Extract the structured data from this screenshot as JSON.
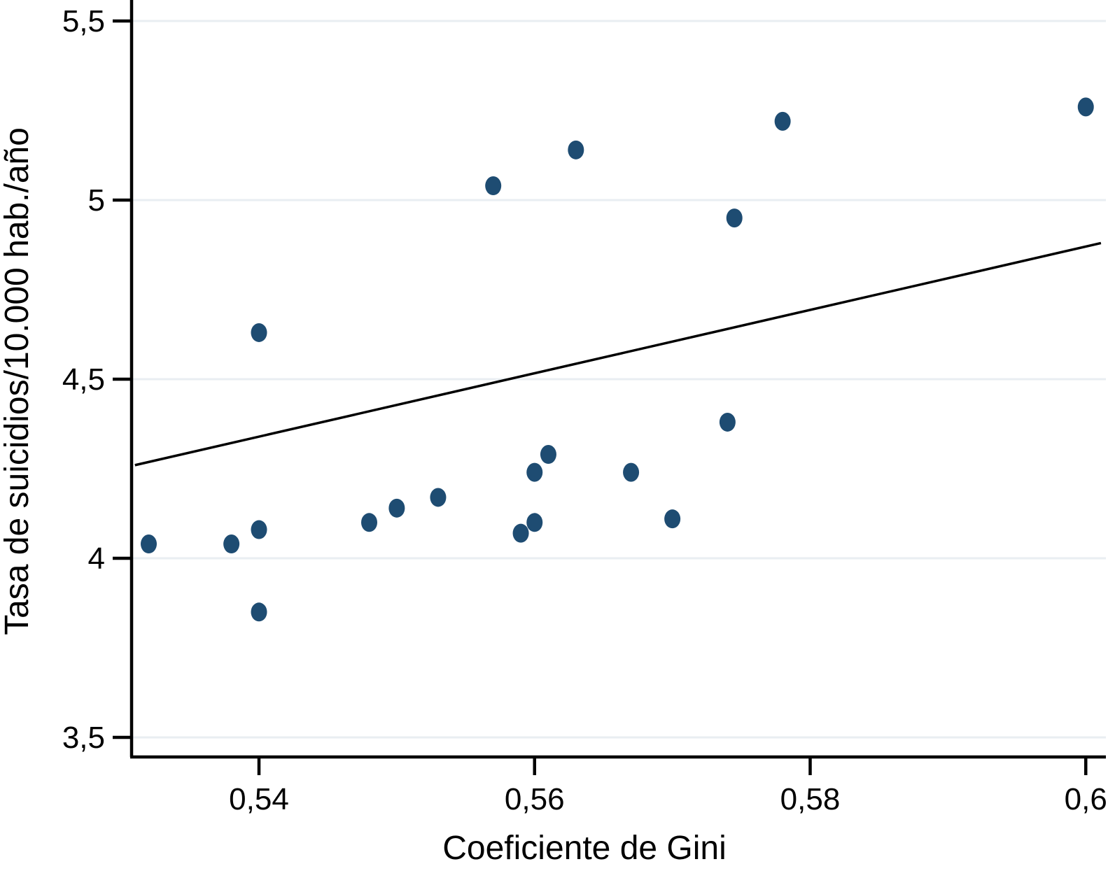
{
  "chart_data": {
    "type": "scatter",
    "title": "",
    "xlabel": "Coeficiente de Gini",
    "ylabel": "Tasa de suicidios/10.000 hab./año",
    "xlim": [
      0.5308,
      0.6016
    ],
    "ylim": [
      3.44,
      5.56
    ],
    "grid": "horizontal",
    "legend": "none",
    "x_ticks": [
      {
        "value": 0.54,
        "label": "0,54"
      },
      {
        "value": 0.56,
        "label": "0,56"
      },
      {
        "value": 0.58,
        "label": "0,58"
      },
      {
        "value": 0.6,
        "label": "0,6"
      }
    ],
    "y_ticks": [
      {
        "value": 5.5,
        "label": "5,5"
      },
      {
        "value": 5.0,
        "label": "5"
      },
      {
        "value": 4.5,
        "label": "4,5"
      },
      {
        "value": 4.0,
        "label": "4"
      },
      {
        "value": 3.5,
        "label": "3,5"
      }
    ],
    "points": [
      {
        "x": 0.532,
        "y": 4.04
      },
      {
        "x": 0.538,
        "y": 4.04
      },
      {
        "x": 0.54,
        "y": 4.08
      },
      {
        "x": 0.54,
        "y": 4.63
      },
      {
        "x": 0.54,
        "y": 3.85
      },
      {
        "x": 0.548,
        "y": 4.1
      },
      {
        "x": 0.55,
        "y": 4.14
      },
      {
        "x": 0.553,
        "y": 4.17
      },
      {
        "x": 0.557,
        "y": 5.04
      },
      {
        "x": 0.559,
        "y": 4.07
      },
      {
        "x": 0.56,
        "y": 4.1
      },
      {
        "x": 0.56,
        "y": 4.24
      },
      {
        "x": 0.561,
        "y": 4.29
      },
      {
        "x": 0.563,
        "y": 5.14
      },
      {
        "x": 0.567,
        "y": 4.24
      },
      {
        "x": 0.57,
        "y": 4.11
      },
      {
        "x": 0.574,
        "y": 4.38
      },
      {
        "x": 0.5745,
        "y": 4.95
      },
      {
        "x": 0.578,
        "y": 5.22
      },
      {
        "x": 0.6,
        "y": 5.26
      }
    ],
    "trend_line": {
      "x1": 0.531,
      "y1": 4.26,
      "x2": 0.6011,
      "y2": 4.88
    },
    "colors": {
      "point": "#1e4c72",
      "grid": "#e9eef2",
      "axis": "#000000",
      "trend": "#000000"
    }
  }
}
